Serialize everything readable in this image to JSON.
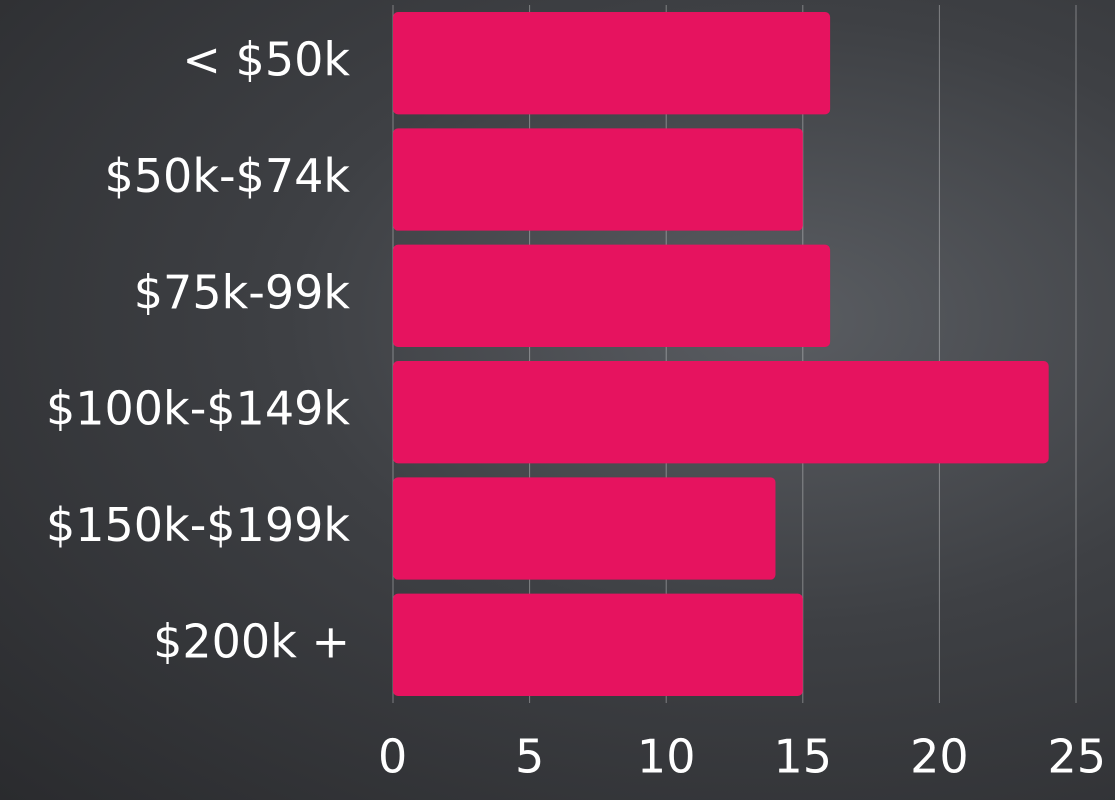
{
  "chart_data": {
    "type": "bar",
    "orientation": "horizontal",
    "categories": [
      "< $50k",
      "$50k-$74k",
      "$75k-99k",
      "$100k-$149k",
      "$150k-$199k",
      "$200k +"
    ],
    "values": [
      16,
      15,
      16,
      24,
      14,
      15
    ],
    "color": "#e6135f",
    "xlim": [
      0,
      25
    ],
    "xticks": [
      0,
      5,
      10,
      15,
      20,
      25
    ],
    "grid": true
  }
}
